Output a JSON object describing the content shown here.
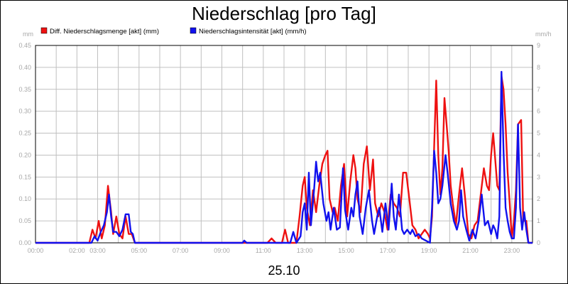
{
  "chart_data": {
    "type": "line",
    "title": "Niederschlag [pro Tag]",
    "xlabel": "25.10",
    "y_left_unit": "mm",
    "y_right_unit": "mm/h",
    "y_left_range": [
      0,
      0.45
    ],
    "y_right_range": [
      0,
      9
    ],
    "y_left_ticks": [
      "0.00",
      "0.05",
      "0.10",
      "0.15",
      "0.20",
      "0.25",
      "0.30",
      "0.35",
      "0.40",
      "0.45"
    ],
    "y_right_ticks": [
      "0",
      "1",
      "2",
      "3",
      "4",
      "5",
      "6",
      "7",
      "8",
      "9"
    ],
    "x_ticks": [
      "00:00",
      "02:00",
      "03:00",
      "05:00",
      "07:00",
      "09:00",
      "11:00",
      "13:00",
      "15:00",
      "17:00",
      "19:00",
      "21:00",
      "23:00"
    ],
    "x_range_hours": [
      0,
      24
    ],
    "grid": true,
    "legend_position": "top-left",
    "colors": {
      "red": "#ee1111",
      "blue": "#1111ee",
      "grid": "#c0c0c0",
      "axis_text": "#a8a8a8"
    },
    "series": [
      {
        "name": "Diff. Niederschlagsmenge [akt] (mm)",
        "color": "#ee1111",
        "axis": "left",
        "points": [
          [
            0,
            0
          ],
          [
            2.6,
            0
          ],
          [
            2.75,
            0.03
          ],
          [
            2.9,
            0.01
          ],
          [
            3.05,
            0.05
          ],
          [
            3.2,
            0.01
          ],
          [
            3.35,
            0.04
          ],
          [
            3.5,
            0.13
          ],
          [
            3.65,
            0.07
          ],
          [
            3.75,
            0.02
          ],
          [
            3.9,
            0.06
          ],
          [
            4.05,
            0.02
          ],
          [
            4.2,
            0.01
          ],
          [
            4.35,
            0.06
          ],
          [
            4.5,
            0.02
          ],
          [
            4.65,
            0.02
          ],
          [
            4.8,
            0.0
          ],
          [
            11.2,
            0
          ],
          [
            11.4,
            0.01
          ],
          [
            11.6,
            0.0
          ],
          [
            11.9,
            0.0
          ],
          [
            12.05,
            0.03
          ],
          [
            12.2,
            0.0
          ],
          [
            12.4,
            0.0
          ],
          [
            12.6,
            0.0
          ],
          [
            12.75,
            0.06
          ],
          [
            12.9,
            0.13
          ],
          [
            13.0,
            0.15
          ],
          [
            13.1,
            0.08
          ],
          [
            13.25,
            0.04
          ],
          [
            13.4,
            0.12
          ],
          [
            13.55,
            0.07
          ],
          [
            13.7,
            0.13
          ],
          [
            13.85,
            0.18
          ],
          [
            14.0,
            0.2
          ],
          [
            14.1,
            0.21
          ],
          [
            14.2,
            0.1
          ],
          [
            14.35,
            0.07
          ],
          [
            14.45,
            0.08
          ],
          [
            14.6,
            0.05
          ],
          [
            14.75,
            0.13
          ],
          [
            14.9,
            0.18
          ],
          [
            15.05,
            0.06
          ],
          [
            15.2,
            0.14
          ],
          [
            15.35,
            0.2
          ],
          [
            15.45,
            0.17
          ],
          [
            15.55,
            0.1
          ],
          [
            15.7,
            0.07
          ],
          [
            15.85,
            0.18
          ],
          [
            16.0,
            0.22
          ],
          [
            16.15,
            0.12
          ],
          [
            16.3,
            0.19
          ],
          [
            16.4,
            0.09
          ],
          [
            16.55,
            0.06
          ],
          [
            16.7,
            0.09
          ],
          [
            16.85,
            0.07
          ],
          [
            17.0,
            0.03
          ],
          [
            17.15,
            0.11
          ],
          [
            17.3,
            0.09
          ],
          [
            17.45,
            0.08
          ],
          [
            17.6,
            0.06
          ],
          [
            17.75,
            0.16
          ],
          [
            17.9,
            0.16
          ],
          [
            18.05,
            0.1
          ],
          [
            18.2,
            0.04
          ],
          [
            18.35,
            0.03
          ],
          [
            18.5,
            0.01
          ],
          [
            18.65,
            0.02
          ],
          [
            18.8,
            0.03
          ],
          [
            18.95,
            0.02
          ],
          [
            19.05,
            0.01
          ],
          [
            19.15,
            0.06
          ],
          [
            19.25,
            0.22
          ],
          [
            19.35,
            0.37
          ],
          [
            19.45,
            0.2
          ],
          [
            19.55,
            0.11
          ],
          [
            19.65,
            0.17
          ],
          [
            19.75,
            0.33
          ],
          [
            19.85,
            0.27
          ],
          [
            19.95,
            0.21
          ],
          [
            20.05,
            0.13
          ],
          [
            20.15,
            0.09
          ],
          [
            20.3,
            0.04
          ],
          [
            20.45,
            0.11
          ],
          [
            20.6,
            0.17
          ],
          [
            20.75,
            0.1
          ],
          [
            20.9,
            0.02
          ],
          [
            21.05,
            0.01
          ],
          [
            21.2,
            0.04
          ],
          [
            21.35,
            0.05
          ],
          [
            21.5,
            0.11
          ],
          [
            21.65,
            0.17
          ],
          [
            21.8,
            0.13
          ],
          [
            21.9,
            0.12
          ],
          [
            22.0,
            0.2
          ],
          [
            22.1,
            0.25
          ],
          [
            22.2,
            0.19
          ],
          [
            22.3,
            0.13
          ],
          [
            22.4,
            0.12
          ],
          [
            22.5,
            0.38
          ],
          [
            22.6,
            0.35
          ],
          [
            22.7,
            0.27
          ],
          [
            22.8,
            0.16
          ],
          [
            22.9,
            0.09
          ],
          [
            23.0,
            0.01
          ],
          [
            23.1,
            0.05
          ],
          [
            23.2,
            0.12
          ],
          [
            23.3,
            0.27
          ],
          [
            23.45,
            0.28
          ],
          [
            23.55,
            0.05
          ],
          [
            23.7,
            0.05
          ],
          [
            23.8,
            0.0
          ],
          [
            24,
            0.0
          ]
        ]
      },
      {
        "name": "Niederschlagsintensität [akt] (mm/h)",
        "color": "#1111ee",
        "axis": "right",
        "points": [
          [
            0,
            0
          ],
          [
            2.7,
            0
          ],
          [
            2.85,
            0.3
          ],
          [
            3.0,
            0.1
          ],
          [
            3.15,
            0.5
          ],
          [
            3.3,
            0.8
          ],
          [
            3.45,
            1.4
          ],
          [
            3.55,
            2.2
          ],
          [
            3.65,
            1.2
          ],
          [
            3.75,
            0.5
          ],
          [
            3.9,
            0.5
          ],
          [
            4.05,
            0.3
          ],
          [
            4.2,
            0.6
          ],
          [
            4.35,
            1.3
          ],
          [
            4.5,
            1.3
          ],
          [
            4.6,
            0.5
          ],
          [
            4.7,
            0.4
          ],
          [
            4.8,
            0.0
          ],
          [
            10.0,
            0
          ],
          [
            10.08,
            0.1
          ],
          [
            10.2,
            0.0
          ],
          [
            11.2,
            0
          ],
          [
            12.3,
            0
          ],
          [
            12.45,
            0.5
          ],
          [
            12.6,
            0
          ],
          [
            12.8,
            0.3
          ],
          [
            12.9,
            1.4
          ],
          [
            13.0,
            1.8
          ],
          [
            13.1,
            0.6
          ],
          [
            13.2,
            3.2
          ],
          [
            13.3,
            0.8
          ],
          [
            13.45,
            2.4
          ],
          [
            13.55,
            3.7
          ],
          [
            13.65,
            2.8
          ],
          [
            13.75,
            3.2
          ],
          [
            13.9,
            1.8
          ],
          [
            14.05,
            1.0
          ],
          [
            14.15,
            1.4
          ],
          [
            14.25,
            0.6
          ],
          [
            14.4,
            1.6
          ],
          [
            14.55,
            0.6
          ],
          [
            14.7,
            0.7
          ],
          [
            14.85,
            3.4
          ],
          [
            14.95,
            1.5
          ],
          [
            15.1,
            0.6
          ],
          [
            15.25,
            1.6
          ],
          [
            15.35,
            1.2
          ],
          [
            15.45,
            2.2
          ],
          [
            15.55,
            2.8
          ],
          [
            15.65,
            1.2
          ],
          [
            15.8,
            0.4
          ],
          [
            15.95,
            1.6
          ],
          [
            16.1,
            2.4
          ],
          [
            16.25,
            1.0
          ],
          [
            16.35,
            0.4
          ],
          [
            16.5,
            1.2
          ],
          [
            16.6,
            1.6
          ],
          [
            16.75,
            0.5
          ],
          [
            16.9,
            1.8
          ],
          [
            17.05,
            0.6
          ],
          [
            17.2,
            2.7
          ],
          [
            17.3,
            1.2
          ],
          [
            17.4,
            0.6
          ],
          [
            17.55,
            2.2
          ],
          [
            17.7,
            0.6
          ],
          [
            17.8,
            0.4
          ],
          [
            17.95,
            0.6
          ],
          [
            18.1,
            0.4
          ],
          [
            18.2,
            0.6
          ],
          [
            18.35,
            0.3
          ],
          [
            18.5,
            0.4
          ],
          [
            18.65,
            0.2
          ],
          [
            19.05,
            0.0
          ],
          [
            19.15,
            1.6
          ],
          [
            19.25,
            4.2
          ],
          [
            19.35,
            3.2
          ],
          [
            19.45,
            1.8
          ],
          [
            19.55,
            2.0
          ],
          [
            19.65,
            2.6
          ],
          [
            19.8,
            4.0
          ],
          [
            19.9,
            3.2
          ],
          [
            20.05,
            1.8
          ],
          [
            20.2,
            1.0
          ],
          [
            20.35,
            0.6
          ],
          [
            20.45,
            1.0
          ],
          [
            20.55,
            2.4
          ],
          [
            20.65,
            1.2
          ],
          [
            20.8,
            0.6
          ],
          [
            20.95,
            0.1
          ],
          [
            21.1,
            0.6
          ],
          [
            21.25,
            0.2
          ],
          [
            21.4,
            1.0
          ],
          [
            21.55,
            2.2
          ],
          [
            21.7,
            0.8
          ],
          [
            21.85,
            1.0
          ],
          [
            22.0,
            0.4
          ],
          [
            22.1,
            0.8
          ],
          [
            22.2,
            0.6
          ],
          [
            22.3,
            0.2
          ],
          [
            22.4,
            1.2
          ],
          [
            22.5,
            7.8
          ],
          [
            22.6,
            4.2
          ],
          [
            22.7,
            1.6
          ],
          [
            22.8,
            1.0
          ],
          [
            22.9,
            0.5
          ],
          [
            23.0,
            0.2
          ],
          [
            23.1,
            0.2
          ],
          [
            23.2,
            1.6
          ],
          [
            23.3,
            5.4
          ],
          [
            23.4,
            1.6
          ],
          [
            23.5,
            0.6
          ],
          [
            23.6,
            1.4
          ],
          [
            23.7,
            0.6
          ],
          [
            23.8,
            0.0
          ],
          [
            24,
            0.0
          ]
        ]
      }
    ]
  }
}
